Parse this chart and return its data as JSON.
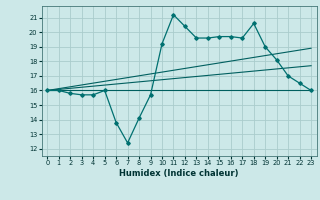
{
  "xlabel": "Humidex (Indice chaleur)",
  "xlim": [
    -0.5,
    23.5
  ],
  "ylim": [
    11.5,
    21.8
  ],
  "yticks": [
    12,
    13,
    14,
    15,
    16,
    17,
    18,
    19,
    20,
    21
  ],
  "xticks": [
    0,
    1,
    2,
    3,
    4,
    5,
    6,
    7,
    8,
    9,
    10,
    11,
    12,
    13,
    14,
    15,
    16,
    17,
    18,
    19,
    20,
    21,
    22,
    23
  ],
  "bg_color": "#cce8e8",
  "grid_color": "#aacccc",
  "line_color": "#005f5f",
  "line_color2": "#007070",
  "series1_x": [
    0,
    1,
    2,
    3,
    4,
    5,
    6,
    7,
    8,
    9,
    10,
    11,
    12,
    13,
    14,
    15,
    16,
    17,
    18,
    19,
    20,
    21,
    22,
    23
  ],
  "series1_y": [
    16.0,
    16.0,
    15.8,
    15.7,
    15.7,
    16.0,
    13.8,
    12.4,
    14.1,
    15.7,
    19.2,
    21.2,
    20.4,
    19.6,
    19.6,
    19.7,
    19.7,
    19.6,
    20.6,
    19.0,
    18.1,
    17.0,
    16.5,
    16.0
  ],
  "series2_x": [
    0,
    23
  ],
  "series2_y": [
    16.0,
    16.0
  ],
  "series3_x": [
    0,
    23
  ],
  "series3_y": [
    16.0,
    17.7
  ],
  "series4_x": [
    0,
    23
  ],
  "series4_y": [
    16.0,
    18.9
  ]
}
